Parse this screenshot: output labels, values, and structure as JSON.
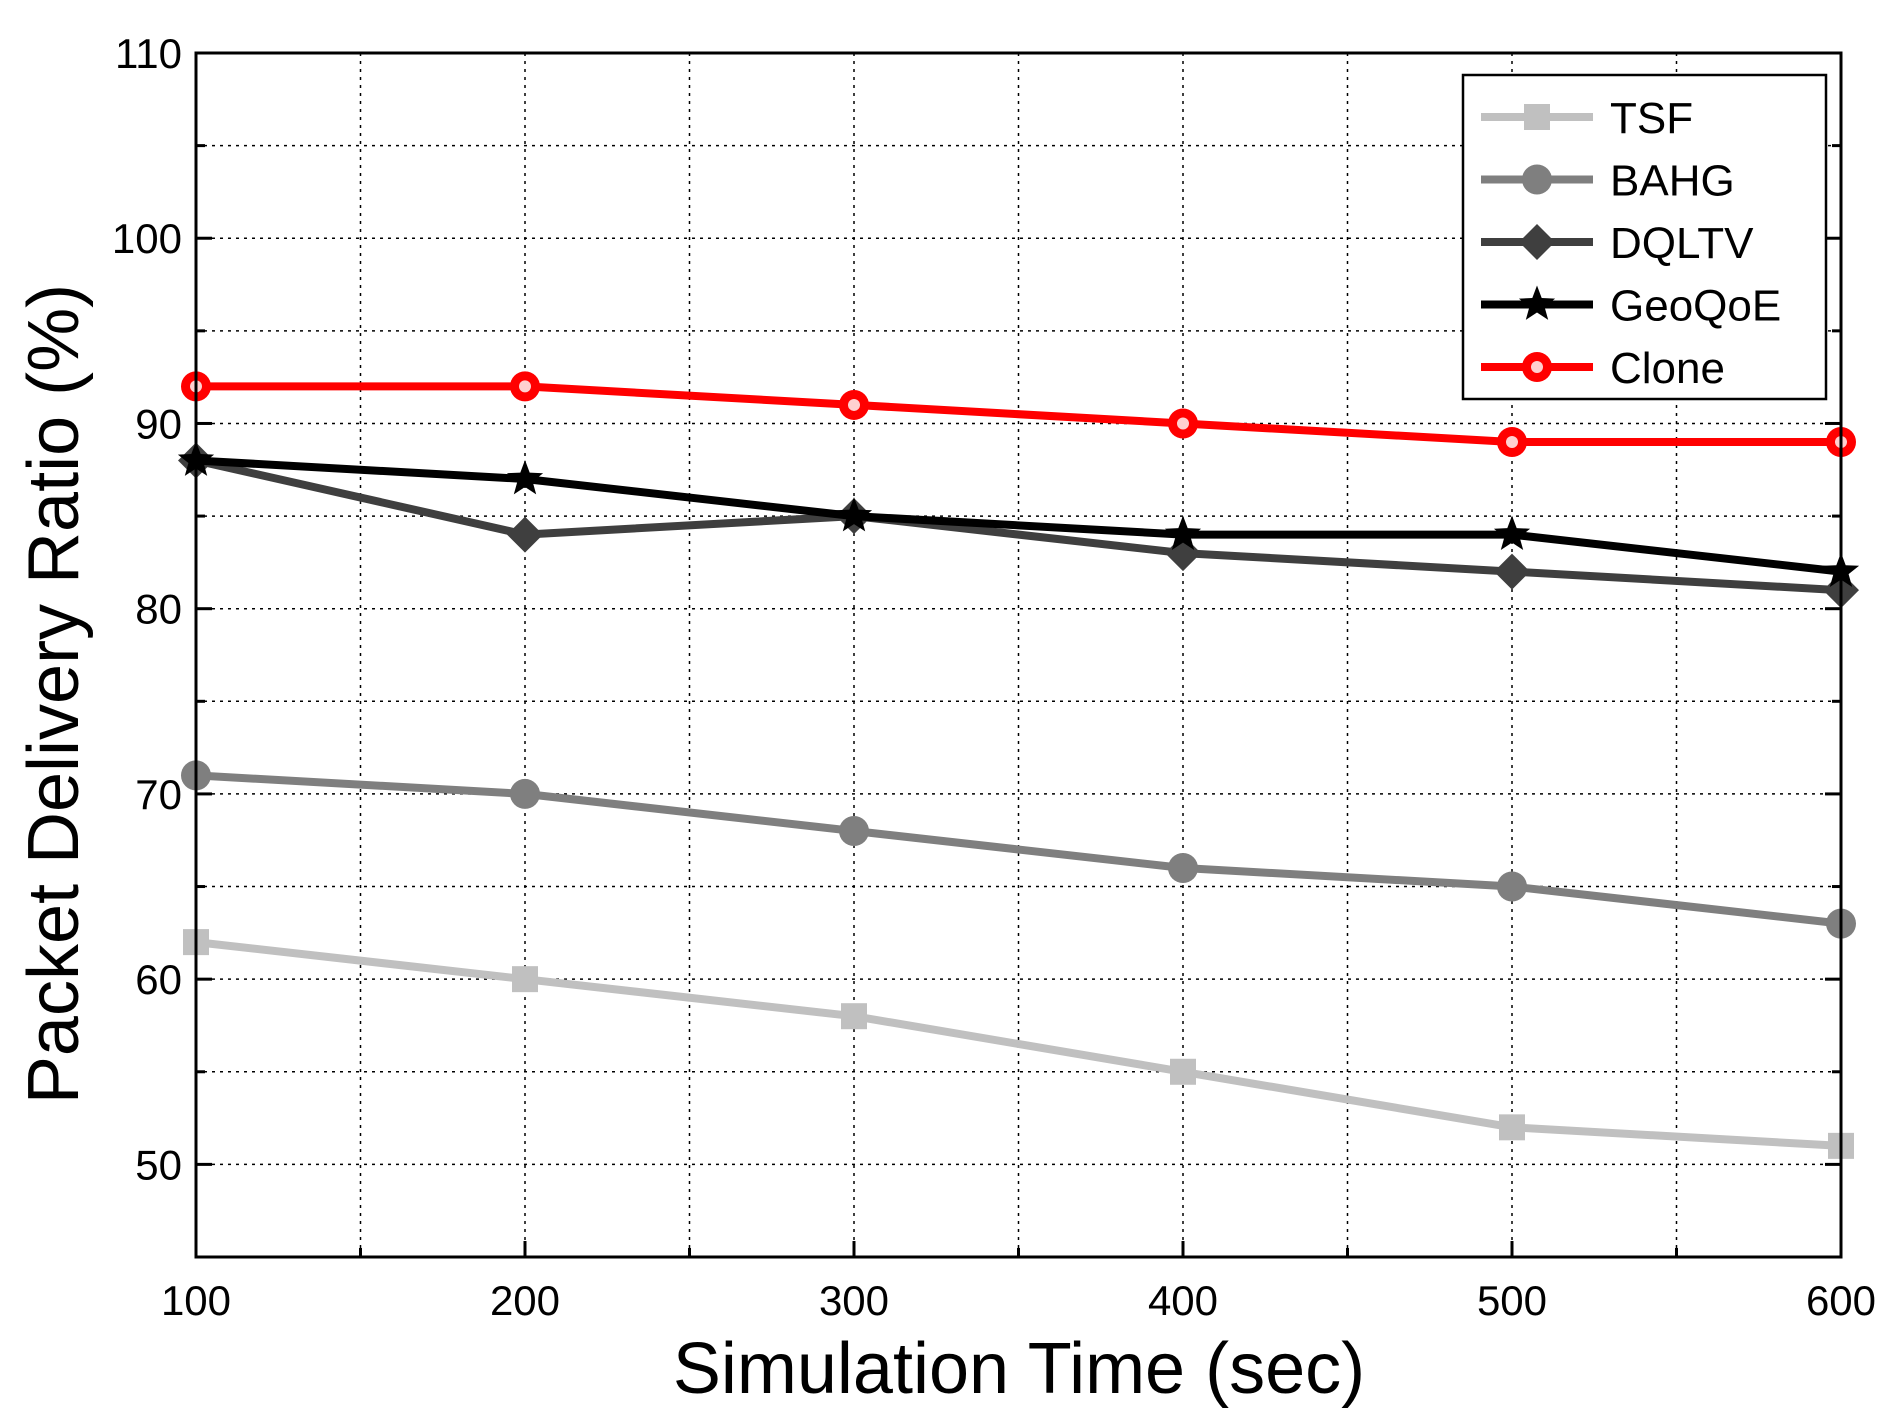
{
  "chart_data": {
    "type": "line",
    "title": "",
    "xlabel": "Simulation Time (sec)",
    "ylabel": "Packet Delivery Ratio (%)",
    "x": [
      100,
      200,
      300,
      400,
      500,
      600
    ],
    "xlim": [
      100,
      600
    ],
    "ylim": [
      45,
      110
    ],
    "xticks": [
      100,
      200,
      300,
      400,
      500,
      600
    ],
    "xtick_labels": [
      "100",
      "200",
      "300",
      "400",
      "500",
      "600"
    ],
    "yticks": [
      50,
      60,
      70,
      80,
      90,
      100,
      110
    ],
    "ytick_labels": [
      "50",
      "60",
      "70",
      "80",
      "90",
      "100",
      "110"
    ],
    "grid": true,
    "legend_position": "top-right",
    "series": [
      {
        "name": "TSF",
        "values": [
          62,
          60,
          58,
          55,
          52,
          51
        ],
        "color": "#c0c0c0",
        "marker": "square"
      },
      {
        "name": "BAHG",
        "values": [
          71,
          70,
          68,
          66,
          65,
          63
        ],
        "color": "#7f7f7f",
        "marker": "circle"
      },
      {
        "name": "DQLTV",
        "values": [
          88,
          84,
          85,
          83,
          82,
          81
        ],
        "color": "#3f3f3f",
        "marker": "diamond"
      },
      {
        "name": "GeoQoE",
        "values": [
          88,
          87,
          85,
          84,
          84,
          82
        ],
        "color": "#000000",
        "marker": "star"
      },
      {
        "name": "Clone",
        "values": [
          92,
          92,
          91,
          90,
          89,
          89
        ],
        "color": "#ff0000",
        "marker": "circle-highlight"
      }
    ]
  }
}
